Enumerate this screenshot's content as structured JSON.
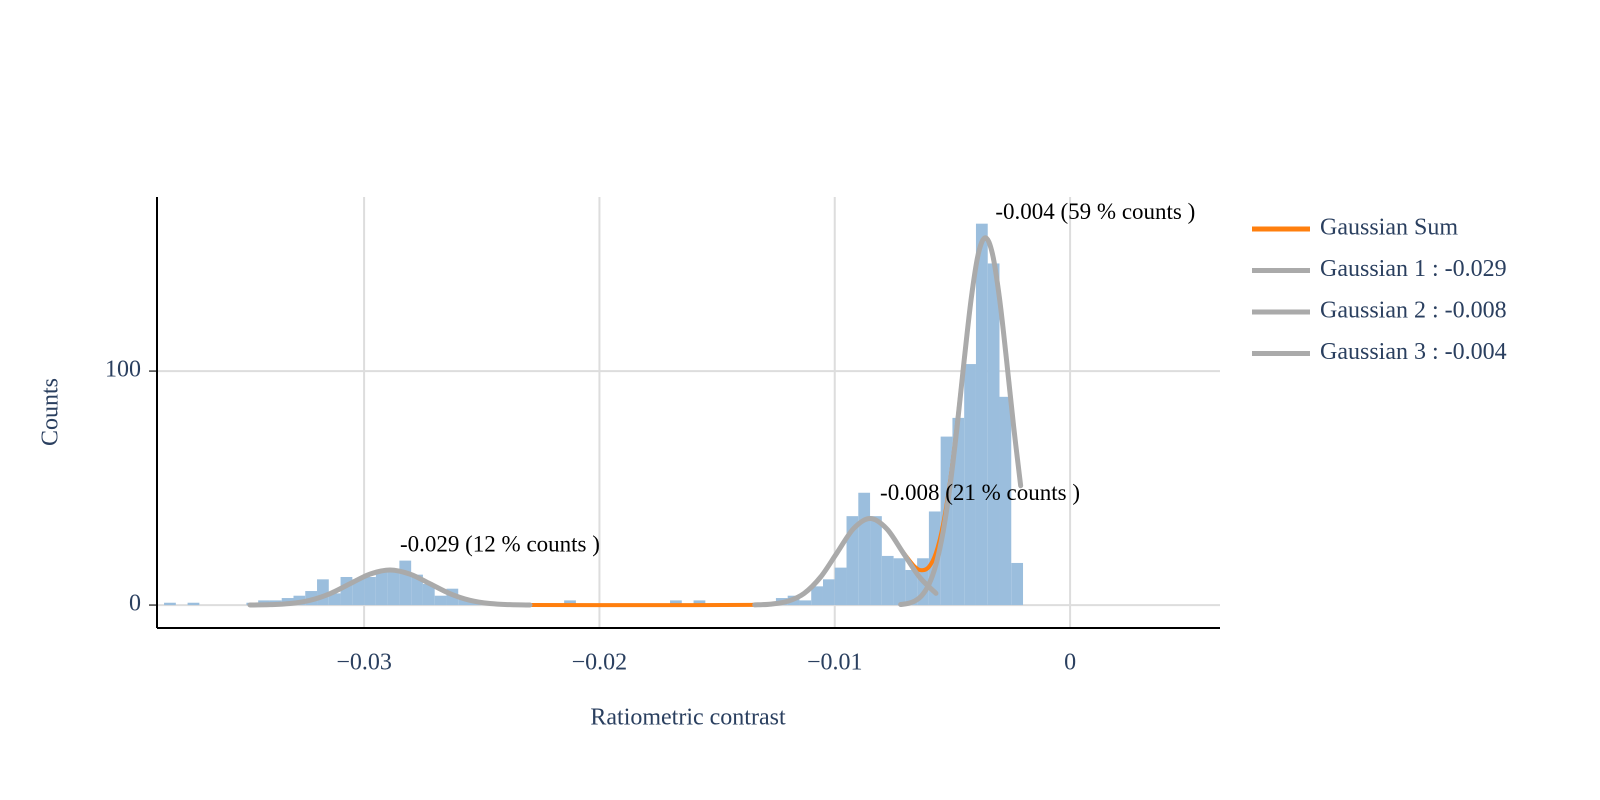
{
  "chart_data": {
    "type": "histogram",
    "xlabel": "Ratiometric contrast",
    "ylabel": "Counts",
    "bins": [
      -0.0385,
      -0.038,
      -0.0375,
      -0.037,
      -0.0365,
      -0.036,
      -0.0355,
      -0.035,
      -0.0345,
      -0.034,
      -0.0335,
      -0.033,
      -0.0325,
      -0.032,
      -0.0315,
      -0.031,
      -0.0305,
      -0.03,
      -0.0295,
      -0.029,
      -0.0285,
      -0.028,
      -0.0275,
      -0.027,
      -0.0265,
      -0.026,
      -0.0255,
      -0.025,
      -0.0245,
      -0.024,
      -0.0235,
      -0.023,
      -0.0225,
      -0.022,
      -0.0215,
      -0.021,
      -0.0205,
      -0.02,
      -0.0195,
      -0.019,
      -0.0185,
      -0.018,
      -0.0175,
      -0.017,
      -0.0165,
      -0.016,
      -0.0155,
      -0.015,
      -0.0145,
      -0.014,
      -0.0135,
      -0.013,
      -0.0125,
      -0.012,
      -0.0115,
      -0.011,
      -0.0105,
      -0.01,
      -0.0095,
      -0.009,
      -0.0085,
      -0.008,
      -0.0075,
      -0.007,
      -0.0065,
      -0.006,
      -0.0055,
      -0.005,
      -0.0045,
      -0.004,
      -0.0035,
      -0.003,
      -0.0025,
      -0.002
    ],
    "counts": [
      1,
      0,
      1,
      0,
      0,
      0,
      0,
      1,
      2,
      2,
      3,
      4,
      6,
      11,
      5,
      12,
      11,
      12,
      14,
      15,
      19,
      13,
      9,
      4,
      7,
      3,
      2,
      1,
      1,
      1,
      0,
      0,
      0,
      0,
      2,
      0,
      0,
      0,
      0,
      0,
      0,
      0,
      0,
      2,
      0,
      2,
      0,
      0,
      0,
      0,
      1,
      1,
      3,
      4,
      2,
      8,
      11,
      16,
      38,
      48,
      38,
      21,
      20,
      15,
      20,
      40,
      72,
      80,
      103,
      163,
      146,
      89,
      18
    ],
    "color": "#9bbedd",
    "series": [
      {
        "name": "Gaussian Sum",
        "color": "#ff7f0e",
        "x": [
          -0.03485,
          -0.034,
          -0.03315,
          -0.0323,
          -0.03145,
          -0.0306,
          -0.02975,
          -0.0289,
          -0.02805,
          -0.0272,
          -0.02635,
          -0.0255,
          -0.02465,
          -0.0238,
          -0.02295,
          -0.02,
          -0.016,
          -0.0134,
          -0.0127,
          -0.012,
          -0.0113,
          -0.0106,
          -0.0099,
          -0.0092,
          -0.0085,
          -0.0078,
          -0.0071,
          -0.0066,
          -0.0063,
          -0.006,
          -0.0057,
          -0.0054,
          -0.0051,
          -0.0048,
          -0.0045,
          -0.0042,
          -0.0039,
          -0.0036,
          -0.0033,
          -0.003,
          -0.0027,
          -0.0024,
          -0.0021
        ],
        "values": [
          0.03,
          0.17,
          0.66,
          2.03,
          4.87,
          9.1,
          13.24,
          15,
          13.24,
          9.1,
          4.87,
          2.03,
          0.66,
          0.17,
          0.03,
          0,
          0,
          0.08,
          0.41,
          1.62,
          5.01,
          12,
          22.4,
          32.7,
          37,
          32.7,
          22.7,
          16.4,
          14.9,
          16.3,
          22.3,
          34.3,
          52.9,
          77.5,
          105.3,
          131.4,
          150.2,
          157,
          150.1,
          131.1,
          104.7,
          76.4,
          51
        ]
      },
      {
        "name": "Gaussian 1 : -0.029",
        "color": "#aaaaaa",
        "x": [
          -0.03485,
          -0.034,
          -0.03315,
          -0.0323,
          -0.03145,
          -0.0306,
          -0.02975,
          -0.0289,
          -0.02805,
          -0.0272,
          -0.02635,
          -0.0255,
          -0.02465,
          -0.0238,
          -0.02295
        ],
        "values": [
          0.03,
          0.17,
          0.66,
          2.03,
          4.87,
          9.1,
          13.24,
          15,
          13.24,
          9.1,
          4.87,
          2.03,
          0.66,
          0.17,
          0.03
        ]
      },
      {
        "name": "Gaussian 2 : -0.008",
        "color": "#aaaaaa",
        "x": [
          -0.0134,
          -0.0127,
          -0.012,
          -0.0113,
          -0.0106,
          -0.0099,
          -0.0092,
          -0.0085,
          -0.0078,
          -0.0071,
          -0.0064,
          -0.0057
        ],
        "values": [
          0.08,
          0.41,
          1.62,
          5.01,
          12,
          22.4,
          32.7,
          37,
          32.7,
          22.4,
          12,
          5.01
        ]
      },
      {
        "name": "Gaussian 3 : -0.004",
        "color": "#aaaaaa",
        "x": [
          -0.0072,
          -0.0069,
          -0.0066,
          -0.0063,
          -0.006,
          -0.0057,
          -0.0054,
          -0.0051,
          -0.0048,
          -0.0045,
          -0.0042,
          -0.0039,
          -0.0036,
          -0.0033,
          -0.003,
          -0.0027,
          -0.0024,
          -0.0021
        ],
        "values": [
          0.24,
          0.68,
          1.74,
          4.1,
          8.81,
          17.3,
          31.1,
          51,
          76.4,
          104.7,
          131.1,
          150.1,
          157,
          150.1,
          131.1,
          104.7,
          76.4,
          51
        ]
      }
    ],
    "annotations": [
      "-0.029 (12 % counts )",
      "-0.008 (21 % counts )",
      "-0.004 (59 % counts )"
    ],
    "xlim": [
      -0.0388,
      0.00637
    ],
    "xticks": [
      {
        "value": -0.03,
        "label": "−0.03"
      },
      {
        "value": -0.02,
        "label": "−0.02"
      },
      {
        "value": -0.01,
        "label": "−0.01"
      },
      0
    ],
    "ylim": [
      -9.8,
      174.4
    ],
    "yticks": [
      0,
      100
    ],
    "grid": true,
    "legend": "right"
  }
}
